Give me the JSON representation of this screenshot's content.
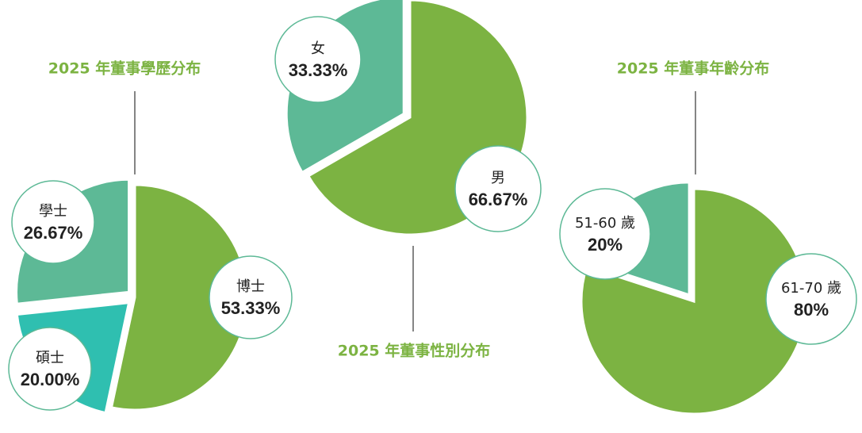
{
  "colors": {
    "green": "#7CB342",
    "teal": "#5DB996",
    "cyan": "#2FBFB0",
    "title": "#7CB342",
    "label_border": "#5DB996",
    "connector": "#333333"
  },
  "chart_data": [
    {
      "type": "pie",
      "title": "2025 年董事學歷分布",
      "slices": [
        {
          "name": "博士",
          "value": 53.33,
          "label": "53.33%",
          "color": "#7CB342"
        },
        {
          "name": "碩士",
          "value": 20.0,
          "label": "20.00%",
          "color": "#2FBFB0"
        },
        {
          "name": "學士",
          "value": 26.67,
          "label": "26.67%",
          "color": "#5DB996"
        }
      ]
    },
    {
      "type": "pie",
      "title": "2025 年董事性別分布",
      "slices": [
        {
          "name": "男",
          "value": 66.67,
          "label": "66.67%",
          "color": "#7CB342"
        },
        {
          "name": "女",
          "value": 33.33,
          "label": "33.33%",
          "color": "#5DB996"
        }
      ]
    },
    {
      "type": "pie",
      "title": "2025 年董事年齡分布",
      "slices": [
        {
          "name": "61-70 歲",
          "value": 80,
          "label": "80%",
          "color": "#7CB342"
        },
        {
          "name": "51-60 歲",
          "value": 20,
          "label": "20%",
          "color": "#5DB996"
        }
      ]
    }
  ]
}
